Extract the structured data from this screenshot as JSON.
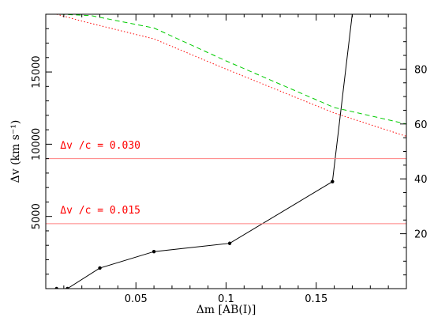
{
  "chart_data": {
    "type": "line",
    "xlabel": "Δm [AB(I)]",
    "ylabel": "Δv (km s⁻¹)",
    "xlim": [
      0.0,
      0.2
    ],
    "ylim_left": [
      0,
      19000
    ],
    "ylim_right": [
      0,
      100
    ],
    "x_ticks": [
      0.05,
      0.1,
      0.15
    ],
    "x_tick_labels": [
      "0.05",
      "0.1",
      "0.15"
    ],
    "y_left_ticks": [
      5000,
      10000,
      15000
    ],
    "y_left_tick_labels": [
      "5000",
      "10000",
      "15000"
    ],
    "y_right_ticks": [
      20,
      40,
      60,
      80
    ],
    "y_right_tick_labels": [
      "20",
      "40",
      "60",
      "80"
    ],
    "grid": false,
    "series": [
      {
        "axis": "right",
        "style": "solid",
        "color": "#000000",
        "markers": true,
        "x": [
          0.006,
          0.012,
          0.03,
          0.06,
          0.102,
          0.159,
          0.17
        ],
        "y": [
          0,
          0,
          7.5,
          13.5,
          16.5,
          39,
          100
        ]
      },
      {
        "axis": "right",
        "style": "dashed",
        "color": "#00cc00",
        "markers": false,
        "x": [
          0.008,
          0.025,
          0.06,
          0.1,
          0.16,
          0.2
        ],
        "y": [
          100,
          99.5,
          95,
          83,
          66,
          60
        ]
      },
      {
        "axis": "right",
        "style": "dotted",
        "color": "#ff0000",
        "markers": false,
        "x": [
          0.006,
          0.02,
          0.06,
          0.1,
          0.16,
          0.2
        ],
        "y": [
          100,
          97.5,
          91,
          80,
          64,
          55.5
        ]
      }
    ],
    "hlines": [
      {
        "axis": "left",
        "y": 9000,
        "color": "#ff8080"
      },
      {
        "axis": "left",
        "y": 4500,
        "color": "#ff8080"
      }
    ],
    "annotations": [
      {
        "text": "Δv /c = 0.030",
        "x": 0.008,
        "y": 9700,
        "color": "#ff0000"
      },
      {
        "text": "Δv /c = 0.015",
        "x": 0.008,
        "y": 5200,
        "color": "#ff0000"
      }
    ]
  }
}
